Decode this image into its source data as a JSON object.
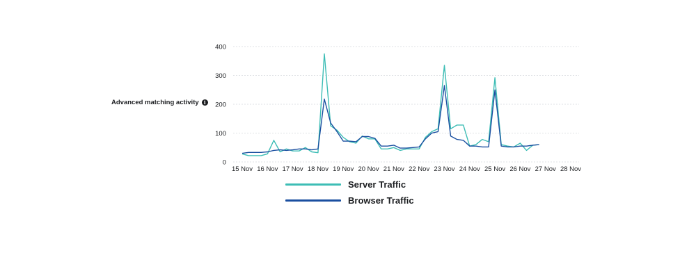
{
  "label": {
    "text": "Advanced matching activity",
    "icon": "info-icon"
  },
  "chart_data": {
    "type": "line",
    "title": "",
    "xlabel": "",
    "ylabel": "",
    "ylim": [
      0,
      400
    ],
    "yticks": [
      0,
      100,
      200,
      300,
      400
    ],
    "xlim": [
      0,
      13
    ],
    "xtick_labels": [
      "15 Nov",
      "16 Nov",
      "17 Nov",
      "18 Nov",
      "19 Nov",
      "20 Nov",
      "21 Nov",
      "22 Nov",
      "23 Nov",
      "24 Nov",
      "25 Nov",
      "26 Nov",
      "27 Nov",
      "28 Nov"
    ],
    "grid": true,
    "legend_position": "bottom",
    "series": [
      {
        "name": "Server Traffic",
        "color": "#3dbdb5",
        "x": [
          0,
          0.25,
          0.5,
          0.75,
          1,
          1.25,
          1.5,
          1.75,
          2,
          2.25,
          2.5,
          2.75,
          3,
          3.25,
          3.5,
          3.75,
          4,
          4.25,
          4.5,
          4.75,
          5,
          5.25,
          5.5,
          5.75,
          6,
          6.25,
          6.5,
          6.75,
          7,
          7.25,
          7.5,
          7.75,
          8,
          8.25,
          8.5,
          8.75,
          9,
          9.25,
          9.5,
          9.75,
          10,
          10.25,
          10.5,
          10.75,
          11,
          11.25,
          11.5,
          11.75,
          12,
          12.25,
          12.5,
          12.75,
          13
        ],
        "y": [
          28,
          22,
          22,
          22,
          28,
          75,
          35,
          45,
          38,
          38,
          50,
          35,
          32,
          375,
          125,
          110,
          85,
          70,
          65,
          90,
          80,
          80,
          45,
          45,
          50,
          40,
          45,
          45,
          45,
          85,
          105,
          115,
          335,
          115,
          128,
          128,
          55,
          60,
          78,
          70,
          292,
          60,
          55,
          52,
          65,
          40,
          58,
          60,
          null,
          null,
          null,
          null,
          null
        ]
      },
      {
        "name": "Browser Traffic",
        "color": "#1a4fa0",
        "x": [
          0,
          0.25,
          0.5,
          0.75,
          1,
          1.25,
          1.5,
          1.75,
          2,
          2.25,
          2.5,
          2.75,
          3,
          3.25,
          3.5,
          3.75,
          4,
          4.25,
          4.5,
          4.75,
          5,
          5.25,
          5.5,
          5.75,
          6,
          6.25,
          6.5,
          6.75,
          7,
          7.25,
          7.5,
          7.75,
          8,
          8.25,
          8.5,
          8.75,
          9,
          9.25,
          9.5,
          9.75,
          10,
          10.25,
          10.5,
          10.75,
          11,
          11.25,
          11.5,
          11.75,
          12,
          12.25,
          12.5,
          12.75,
          13
        ],
        "y": [
          30,
          33,
          33,
          33,
          35,
          40,
          42,
          40,
          42,
          45,
          45,
          42,
          45,
          218,
          135,
          105,
          72,
          72,
          70,
          88,
          88,
          82,
          55,
          55,
          58,
          48,
          48,
          50,
          52,
          80,
          100,
          105,
          265,
          90,
          78,
          75,
          55,
          55,
          52,
          52,
          250,
          55,
          52,
          52,
          55,
          55,
          58,
          60,
          null,
          null,
          null,
          null,
          null
        ]
      }
    ]
  }
}
